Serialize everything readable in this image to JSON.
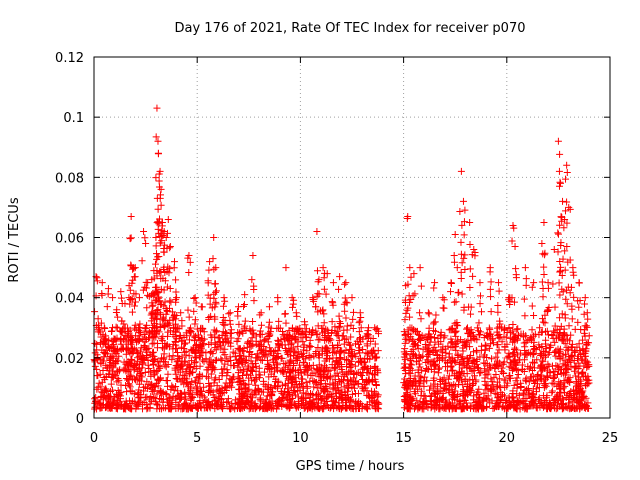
{
  "chart_data": {
    "type": "scatter",
    "title": "Day 176 of 2021, Rate Of TEC Index for receiver p070",
    "xlabel": "GPS time / hours",
    "ylabel": "ROTI / TECUs",
    "xlim": [
      0,
      25
    ],
    "ylim": [
      0,
      0.12
    ],
    "xticks": [
      0,
      5,
      10,
      15,
      20,
      25
    ],
    "xtick_labels": [
      "0",
      "5",
      "10",
      "15",
      "20",
      "25"
    ],
    "yticks": [
      0,
      0.02,
      0.04,
      0.06,
      0.08,
      0.1,
      0.12
    ],
    "ytick_labels": [
      "0",
      "0.02",
      "0.04",
      "0.06",
      "0.08",
      "0.1",
      "0.12"
    ],
    "grid": true,
    "marker": "plus",
    "color": "#ff0000",
    "series": [
      {
        "name": "ROTI",
        "points": [
          [
            0.1,
            0.047
          ],
          [
            0.2,
            0.033
          ],
          [
            0.4,
            0.045
          ],
          [
            0.5,
            0.03
          ],
          [
            0.7,
            0.043
          ],
          [
            0.9,
            0.04
          ],
          [
            1.1,
            0.036
          ],
          [
            1.3,
            0.042
          ],
          [
            1.5,
            0.038
          ],
          [
            1.7,
            0.044
          ],
          [
            1.8,
            0.067
          ],
          [
            1.9,
            0.05
          ],
          [
            2.0,
            0.05
          ],
          [
            2.2,
            0.04
          ],
          [
            2.4,
            0.062
          ],
          [
            2.5,
            0.058
          ],
          [
            2.6,
            0.045
          ],
          [
            2.8,
            0.046
          ],
          [
            2.9,
            0.049
          ],
          [
            3.0,
            0.06
          ],
          [
            3.05,
            0.103
          ],
          [
            3.1,
            0.092
          ],
          [
            3.12,
            0.088
          ],
          [
            3.2,
            0.082
          ],
          [
            3.25,
            0.076
          ],
          [
            3.3,
            0.065
          ],
          [
            3.4,
            0.062
          ],
          [
            3.5,
            0.06
          ],
          [
            3.6,
            0.066
          ],
          [
            3.7,
            0.057
          ],
          [
            3.9,
            0.052
          ],
          [
            4.0,
            0.04
          ],
          [
            4.2,
            0.035
          ],
          [
            4.6,
            0.054
          ],
          [
            4.9,
            0.04
          ],
          [
            5.2,
            0.037
          ],
          [
            5.6,
            0.052
          ],
          [
            5.8,
            0.06
          ],
          [
            5.9,
            0.05
          ],
          [
            6.3,
            0.04
          ],
          [
            6.6,
            0.035
          ],
          [
            7.0,
            0.037
          ],
          [
            7.3,
            0.041
          ],
          [
            7.7,
            0.054
          ],
          [
            8.1,
            0.035
          ],
          [
            8.5,
            0.037
          ],
          [
            8.9,
            0.04
          ],
          [
            9.3,
            0.05
          ],
          [
            9.6,
            0.04
          ],
          [
            9.8,
            0.035
          ],
          [
            10.2,
            0.032
          ],
          [
            10.6,
            0.04
          ],
          [
            10.8,
            0.062
          ],
          [
            10.9,
            0.046
          ],
          [
            11.1,
            0.05
          ],
          [
            11.3,
            0.048
          ],
          [
            11.6,
            0.045
          ],
          [
            11.9,
            0.047
          ],
          [
            12.2,
            0.045
          ],
          [
            12.5,
            0.04
          ],
          [
            12.9,
            0.035
          ],
          [
            13.3,
            0.03
          ],
          [
            13.6,
            0.03
          ],
          [
            15.1,
            0.044
          ],
          [
            15.2,
            0.067
          ],
          [
            15.3,
            0.05
          ],
          [
            15.5,
            0.048
          ],
          [
            15.8,
            0.05
          ],
          [
            16.2,
            0.035
          ],
          [
            16.5,
            0.045
          ],
          [
            16.9,
            0.04
          ],
          [
            17.3,
            0.045
          ],
          [
            17.5,
            0.061
          ],
          [
            17.6,
            0.05
          ],
          [
            17.8,
            0.082
          ],
          [
            17.9,
            0.072
          ],
          [
            18.2,
            0.065
          ],
          [
            18.4,
            0.056
          ],
          [
            18.7,
            0.045
          ],
          [
            19.2,
            0.05
          ],
          [
            19.6,
            0.045
          ],
          [
            20.1,
            0.04
          ],
          [
            20.3,
            0.064
          ],
          [
            20.4,
            0.057
          ],
          [
            20.9,
            0.05
          ],
          [
            21.3,
            0.045
          ],
          [
            21.7,
            0.058
          ],
          [
            21.8,
            0.065
          ],
          [
            22.0,
            0.045
          ],
          [
            22.3,
            0.056
          ],
          [
            22.5,
            0.092
          ],
          [
            22.55,
            0.082
          ],
          [
            22.6,
            0.078
          ],
          [
            22.7,
            0.072
          ],
          [
            22.8,
            0.066
          ],
          [
            22.9,
            0.084
          ],
          [
            23.0,
            0.07
          ],
          [
            23.2,
            0.05
          ],
          [
            23.5,
            0.045
          ],
          [
            23.8,
            0.04
          ],
          [
            23.9,
            0.035
          ]
        ]
      }
    ],
    "dense_band": [
      {
        "x_start": 0.0,
        "x_end": 13.8,
        "y_range": [
          0.003,
          0.03
        ]
      },
      {
        "x_start": 15.0,
        "x_end": 24.0,
        "y_range": [
          0.003,
          0.03
        ]
      }
    ]
  }
}
